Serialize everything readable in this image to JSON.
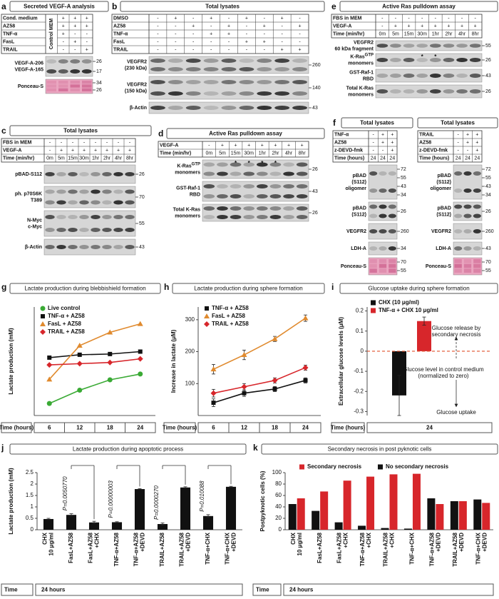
{
  "blot_panels": [
    {
      "letter": "a",
      "title": "Secreted VEGF-A analysis",
      "first_column_label": "Control MEM",
      "table": [
        {
          "label": "Cond. medium",
          "cells": [
            "+",
            "+",
            "+"
          ]
        },
        {
          "label": "AZ58",
          "cells": [
            "+",
            "+",
            "+"
          ]
        },
        {
          "label": "TNF-α",
          "cells": [
            "+",
            "-",
            "-"
          ]
        },
        {
          "label": "FasL",
          "cells": [
            "-",
            "+",
            "-"
          ]
        },
        {
          "label": "TRAIL",
          "cells": [
            "-",
            "-",
            "+"
          ]
        }
      ],
      "blots": [
        {
          "label": [
            "VEGF-A-206",
            "VEGF-A-165"
          ],
          "markers": [
            "26",
            "17"
          ]
        },
        {
          "label": [
            "Ponceau-S"
          ],
          "markers": [
            "34",
            "26"
          ]
        }
      ]
    },
    {
      "letter": "b",
      "title": "Total lysates",
      "table": [
        {
          "label": "DMSO",
          "cells": [
            "-",
            "+",
            "-",
            "+",
            "-",
            "+",
            "-",
            "+",
            "-"
          ]
        },
        {
          "label": "AZ58",
          "cells": [
            "-",
            "-",
            "+",
            "-",
            "+",
            "-",
            "+",
            "-",
            "+"
          ]
        },
        {
          "label": "TNF-α",
          "cells": [
            "-",
            "-",
            "-",
            "+",
            "+",
            "-",
            "-",
            "-",
            "-"
          ]
        },
        {
          "label": "FasL",
          "cells": [
            "-",
            "-",
            "-",
            "-",
            "-",
            "+",
            "+",
            "-",
            "-"
          ]
        },
        {
          "label": "TRAIL",
          "cells": [
            "-",
            "-",
            "-",
            "-",
            "-",
            "-",
            "-",
            "+",
            "+"
          ]
        }
      ],
      "blots": [
        {
          "label": [
            "VEGFR2",
            "(230 kDa)"
          ],
          "markers": [
            "260"
          ]
        },
        {
          "label": [
            "VEGFR2",
            "(150 kDa)"
          ],
          "markers": [
            "140"
          ]
        },
        {
          "label": [
            "β-Actin"
          ],
          "markers": [
            "43"
          ]
        }
      ]
    },
    {
      "letter": "e",
      "title": "Active Ras pulldown assay",
      "table": [
        {
          "label": "FBS in MEM",
          "cells": [
            "-",
            "-",
            "-",
            "-",
            "-",
            "-",
            "-",
            "-"
          ]
        },
        {
          "label": "VEGF-A",
          "cells": [
            "-",
            "+",
            "+",
            "+",
            "+",
            "+",
            "+",
            "+"
          ]
        },
        {
          "label": "Time (min/hr)",
          "cells": [
            "0m",
            "5m",
            "15m",
            "30m",
            "1hr",
            "2hr",
            "4hr",
            "8hr"
          ]
        }
      ],
      "blots": [
        {
          "label": [
            "VEGFR2",
            "60 kDa fragment"
          ],
          "markers": [
            "55"
          ]
        },
        {
          "label": [
            {
              "text": "K-Ras",
              "sup": "GTP"
            },
            "monomers"
          ],
          "markers": [
            "26"
          ],
          "stars": [
            "*",
            "*"
          ]
        },
        {
          "label": [
            "GST-Raf-1",
            "RBD"
          ],
          "markers": [
            "43"
          ]
        },
        {
          "label": [
            "Total K-Ras",
            "monomers"
          ],
          "markers": [
            "26"
          ]
        }
      ]
    },
    {
      "letter": "c",
      "title": "Total lysates",
      "table": [
        {
          "label": "FBS in MEM",
          "cells": [
            "-",
            "-",
            "-",
            "-",
            "-",
            "-",
            "-",
            "-"
          ]
        },
        {
          "label": "VEGF-A",
          "cells": [
            "-",
            "+",
            "+",
            "+",
            "+",
            "+",
            "+",
            "+"
          ]
        },
        {
          "label": "Time (min/hr)",
          "cells": [
            "0m",
            "5m",
            "15m",
            "30m",
            "1hr",
            "2hr",
            "4hr",
            "8hr"
          ]
        }
      ],
      "blots": [
        {
          "label": [
            "pBAD-S112"
          ],
          "markers": [
            "26"
          ]
        },
        {
          "label": [
            "ph. p70S6K",
            "T389"
          ],
          "markers": [
            "70"
          ]
        },
        {
          "label": [
            "N-Myc",
            "c-Myc"
          ],
          "markers": [
            "55"
          ]
        },
        {
          "label": [
            "β-Actin"
          ],
          "markers": [
            "43"
          ]
        }
      ]
    },
    {
      "letter": "d",
      "title": "Active Ras pulldown assay",
      "table": [
        {
          "label": "VEGF-A",
          "cells": [
            "-",
            "+",
            "+",
            "+",
            "+",
            "+",
            "+",
            "+"
          ]
        },
        {
          "label": "Time (min/hr)",
          "cells": [
            "0m",
            "5m",
            "15m",
            "30m",
            "1hr",
            "2hr",
            "4hr",
            "8hr"
          ]
        }
      ],
      "blots": [
        {
          "label": [
            {
              "text": "K-Ras",
              "sup": "GTP"
            },
            "monomers"
          ],
          "markers": [
            "26"
          ],
          "stars": [
            "*",
            "*",
            "*",
            "*"
          ]
        },
        {
          "label": [
            "GST-Raf-1",
            "RBD"
          ],
          "markers": [
            "43"
          ]
        },
        {
          "label": [
            "Total K-Ras",
            "monomers"
          ],
          "markers": [
            "26"
          ]
        }
      ]
    },
    {
      "letter": "f",
      "title": "Total lysates",
      "table": [
        {
          "label": "TNF-α",
          "cells": [
            "-",
            "+",
            "+"
          ]
        },
        {
          "label": "AZ58",
          "cells": [
            "-",
            "+",
            "+"
          ]
        },
        {
          "label": "z-DEVD-fmk",
          "cells": [
            "-",
            "-",
            "+"
          ]
        },
        {
          "label": "Time (hours)",
          "cells": [
            "24",
            "24",
            "24"
          ]
        }
      ],
      "blots": [
        {
          "label": [
            "pBAD",
            "(S112)",
            "oligomer"
          ],
          "markers": [
            "72",
            "55",
            "43",
            "34"
          ]
        },
        {
          "label": [
            "pBAD",
            "(S112)"
          ],
          "markers": [
            "26"
          ]
        },
        {
          "label": [
            "VEGFR2"
          ],
          "markers": [
            "260"
          ]
        },
        {
          "label": [
            "LDH-A"
          ],
          "markers": [
            "34"
          ]
        },
        {
          "label": [
            "Ponceau-S"
          ],
          "markers": [
            "70",
            "55"
          ]
        }
      ]
    },
    {
      "title": "Total lysates",
      "table": [
        {
          "label": "TRAIL",
          "cells": [
            "-",
            "+",
            "+"
          ]
        },
        {
          "label": "AZ58",
          "cells": [
            "-",
            "+",
            "+"
          ]
        },
        {
          "label": "z-DEVD-fmk",
          "cells": [
            "-",
            "-",
            "+"
          ]
        },
        {
          "label": "Time (hours)",
          "cells": [
            "24",
            "24",
            "24"
          ]
        }
      ],
      "blots": [
        {
          "label": [
            "pBAD",
            "(S112)",
            "oligomer"
          ],
          "markers": [
            "72",
            "55",
            "43",
            "34"
          ]
        },
        {
          "label": [
            "pBAD",
            "(S112)"
          ],
          "markers": [
            "26"
          ]
        },
        {
          "label": [
            "VEGFR2"
          ],
          "markers": [
            "260"
          ]
        },
        {
          "label": [
            "LDH-A"
          ],
          "markers": [
            "43"
          ]
        },
        {
          "label": [
            "Ponceau-S"
          ],
          "markers": [
            "70",
            "55"
          ]
        }
      ]
    }
  ],
  "chart_data": [
    {
      "letter": "g",
      "type": "line",
      "title": "Lactate production during blebbishield formation",
      "ylabel": "Lactate production (mM)",
      "xlabel": "Time (hours)",
      "categories": [
        "6",
        "12",
        "18",
        "24"
      ],
      "ylim": [
        0.5,
        5
      ],
      "series": [
        {
          "name": "Live control",
          "color": "#3aaa35",
          "marker": "circle",
          "values": [
            1.0,
            1.55,
            1.98,
            2.22
          ]
        },
        {
          "name": "TNF-α + AZ58",
          "color": "#111111",
          "marker": "square",
          "values": [
            2.9,
            3.02,
            3.05,
            3.15
          ]
        },
        {
          "name": "FasL  + AZ58",
          "color": "#e08a2e",
          "marker": "triangle",
          "values": [
            2.0,
            3.4,
            3.95,
            4.3
          ]
        },
        {
          "name": "TRAIL + AZ58",
          "color": "#d7262b",
          "marker": "diamond",
          "values": [
            2.6,
            2.65,
            2.7,
            2.85
          ]
        }
      ]
    },
    {
      "letter": "h",
      "type": "line",
      "title": "Lactate production during sphere formation",
      "ylabel": "Increase in lactate (μM)",
      "xlabel": "Time (hours)",
      "categories": [
        "6",
        "12",
        "18",
        "24"
      ],
      "ylim": [
        0,
        340
      ],
      "yticks": [
        100,
        200,
        300
      ],
      "series": [
        {
          "name": "TNF-α + AZ58",
          "color": "#111111",
          "marker": "square",
          "values": [
            40,
            70,
            83,
            110
          ],
          "errors": [
            12,
            10,
            8,
            8
          ]
        },
        {
          "name": "FasL  + AZ58",
          "color": "#e08a2e",
          "marker": "triangle",
          "values": [
            145,
            190,
            240,
            305
          ],
          "errors": [
            15,
            15,
            8,
            10
          ]
        },
        {
          "name": "TRAIL + AZ58",
          "color": "#d7262b",
          "marker": "diamond",
          "values": [
            70,
            90,
            110,
            150
          ],
          "errors": [
            12,
            10,
            8,
            8
          ]
        }
      ]
    },
    {
      "letter": "i",
      "type": "bar",
      "title": "Glucose uptake during sphere formation",
      "ylabel": "Extracellular glucose levels (μM)",
      "xlabel": "Time (hours)",
      "categories": [
        "24"
      ],
      "ylim": [
        -0.32,
        0.22
      ],
      "yticks": [
        -0.3,
        -0.2,
        -0.1,
        0,
        0.1,
        0.2
      ],
      "series": [
        {
          "name": "CHX (10 μg/ml)",
          "color": "#111111",
          "values": [
            -0.22
          ],
          "errors": [
            0.1
          ]
        },
        {
          "name": "TNF-α + CHX 10 μg/ml",
          "color": "#d7262b",
          "values": [
            0.15
          ],
          "errors": [
            0.02
          ]
        }
      ],
      "annotations": [
        [
          "Glucose release by",
          "secondary necrosis"
        ],
        [
          "Glucose level in control medium",
          "(normalized to zero)"
        ],
        [
          "Glucose uptake"
        ]
      ]
    },
    {
      "letter": "j",
      "type": "bar",
      "title": "Lactate production during apoptotic process",
      "ylabel": "Lactate production (mM)",
      "xlabel": "Time",
      "xgroup": "24 hours",
      "categories": [
        [
          "CHX",
          "10 μg/ml"
        ],
        [
          "FasL+AZ58"
        ],
        [
          "FasL+AZ58",
          "+CHX"
        ],
        [
          "TNF-α+AZ58"
        ],
        [
          "TNF-α+AZ58",
          "+DEVD"
        ],
        [
          "TRAIL+AZ58"
        ],
        [
          "TRAIL+AZ58",
          "+DEVD"
        ],
        [
          "TNF-α+CHX"
        ],
        [
          "TNF-α+CHX",
          "+DEVD"
        ]
      ],
      "values": [
        0.47,
        0.65,
        0.32,
        0.33,
        1.78,
        0.25,
        1.85,
        0.6,
        1.88
      ],
      "errors": [
        0.03,
        0.05,
        0.05,
        0.02,
        0.02,
        0.05,
        0.03,
        0.06,
        0.02
      ],
      "color": "#111111",
      "ylim": [
        0,
        2.5
      ],
      "yticks": [
        0,
        0.5,
        1,
        1.5,
        2,
        2.5
      ],
      "annotations": [
        "P=0.0050770",
        "P=0.00000003",
        "P=0.0000270",
        "P=0.010088"
      ]
    },
    {
      "letter": "k",
      "type": "grouped_bar",
      "title": "Secondary necrosis in post pyknotic cells",
      "ylabel": "Postpyknotic cells (%)",
      "xlabel": "Time",
      "xgroup": "24 hours",
      "categories": [
        [
          "CHX",
          "10 μg/ml"
        ],
        [
          "FasL+AZ58"
        ],
        [
          "FasL+AZ58",
          "+CHX"
        ],
        [
          "TNF-α+AZ58",
          "+CHX"
        ],
        [
          "TRAIL+AZ58",
          "+CHX"
        ],
        [
          "TNF-α+CHX"
        ],
        [
          "TNF-α+AZ58",
          "+DEVD"
        ],
        [
          "TRAIL+AZ58",
          "+DEVD"
        ],
        [
          "TNF-α+CHX",
          "+DEVD"
        ]
      ],
      "ylim": [
        0,
        100
      ],
      "yticks": [
        0,
        20,
        40,
        60,
        80,
        100
      ],
      "series": [
        {
          "name": "Secondary necrosis",
          "color": "#d7262b",
          "values": [
            55,
            67,
            86,
            93,
            97,
            98,
            45,
            50,
            47
          ]
        },
        {
          "name": "No secondary necrosis",
          "color": "#111111",
          "values": [
            45,
            33,
            13,
            7,
            3,
            2,
            55,
            50,
            53
          ]
        }
      ]
    }
  ]
}
